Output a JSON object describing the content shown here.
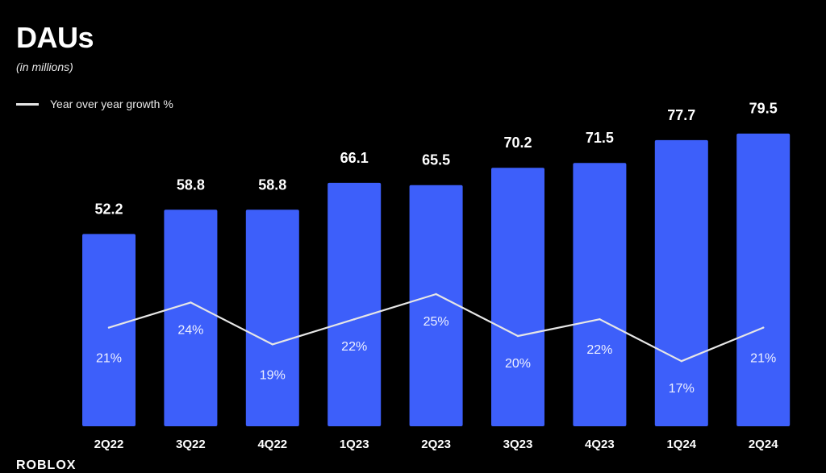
{
  "header": {
    "title": "DAUs",
    "subtitle": "(in millions)"
  },
  "legend": {
    "line_label": "Year over year growth %"
  },
  "footer": {
    "logo_text": "ROBLOX"
  },
  "colors": {
    "background": "#000000",
    "bar": "#3d5ffa",
    "line": "#e6e6e6",
    "text": "#ffffff"
  },
  "chart_data": {
    "type": "bar",
    "categories": [
      "2Q22",
      "3Q22",
      "4Q22",
      "1Q23",
      "2Q23",
      "3Q23",
      "4Q23",
      "1Q24",
      "2Q24"
    ],
    "series": [
      {
        "values": [
          52.2,
          58.8,
          58.8,
          66.1,
          65.5,
          70.2,
          71.5,
          77.7,
          79.5
        ],
        "labels": [
          "52.2",
          "58.8",
          "58.8",
          "66.1",
          "65.5",
          "70.2",
          "71.5",
          "77.7",
          "79.5"
        ]
      },
      {
        "name": "Year over year growth %",
        "type": "line",
        "values": [
          21,
          24,
          19,
          22,
          25,
          20,
          22,
          17,
          21
        ],
        "labels": [
          "21%",
          "24%",
          "19%",
          "22%",
          "25%",
          "20%",
          "22%",
          "17%",
          "21%"
        ]
      }
    ],
    "title": "DAUs",
    "subtitle": "(in millions)",
    "legend_position": "top-left",
    "grid": false
  }
}
